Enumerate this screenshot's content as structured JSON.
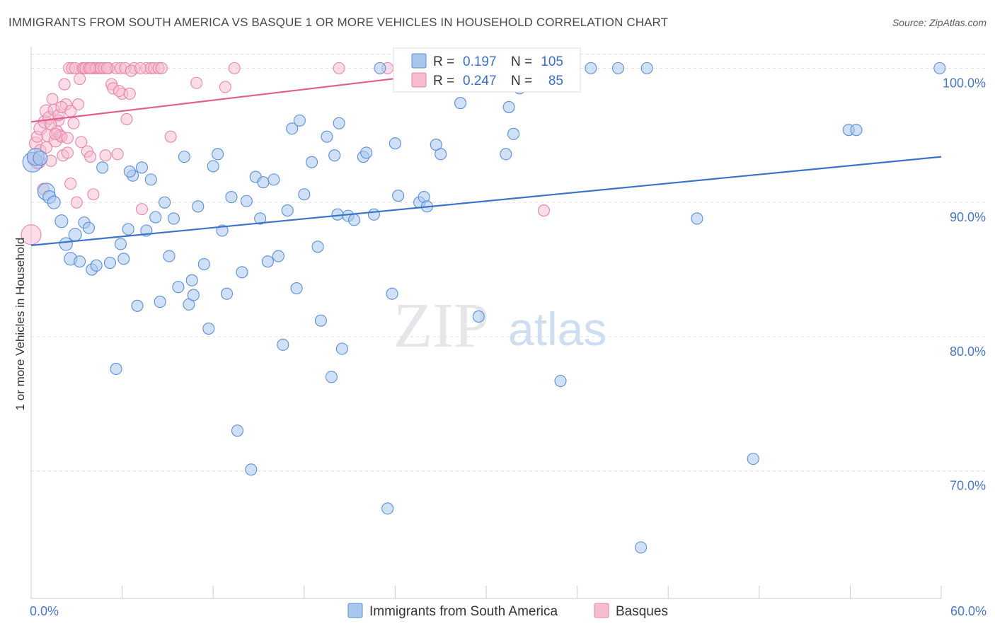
{
  "header": {
    "title": "IMMIGRANTS FROM SOUTH AMERICA VS BASQUE 1 OR MORE VEHICLES IN HOUSEHOLD CORRELATION CHART",
    "source": "Source: ZipAtlas.com"
  },
  "watermark": {
    "zip": "ZIP",
    "atlas": "atlas"
  },
  "colors": {
    "blue_fill": "#a9c6ee",
    "blue_stroke": "#5b8fd6",
    "blue_line": "#3a73c9",
    "pink_fill": "#f6bcd0",
    "pink_stroke": "#e886a7",
    "pink_line": "#e0608c",
    "grid": "#d9dde3",
    "tick_text": "#4a78c2"
  },
  "legend": {
    "rows": [
      {
        "r_label": "R =",
        "r_value": "0.197",
        "n_label": "N =",
        "n_value": "105"
      },
      {
        "r_label": "R =",
        "r_value": "0.247",
        "n_label": "N =",
        "n_value": "85"
      }
    ]
  },
  "chart_data": {
    "type": "scatter",
    "title": "IMMIGRANTS FROM SOUTH AMERICA VS BASQUE 1 OR MORE VEHICLES IN HOUSEHOLD CORRELATION CHART",
    "xlabel": "",
    "ylabel": "1 or more Vehicles in Household",
    "xlim": [
      0,
      60
    ],
    "ylim": [
      60.5,
      101.6
    ],
    "x_tick_labels": [
      "0.0%",
      "60.0%"
    ],
    "y_ticks": [
      70,
      80,
      90,
      100
    ],
    "y_tick_labels": [
      "70.0%",
      "80.0%",
      "90.0%",
      "100.0%"
    ],
    "grid": true,
    "legend_position": "bottom",
    "series": [
      {
        "name": "Immigrants from South America",
        "color": "blue",
        "trend": {
          "x": [
            0,
            60
          ],
          "y": [
            86.8,
            93.4
          ]
        },
        "points": [
          [
            0.1,
            93.0,
            14
          ],
          [
            0.3,
            93.4,
            12
          ],
          [
            0.6,
            93.3,
            10
          ],
          [
            1.0,
            90.8,
            12
          ],
          [
            1.2,
            90.4,
            9
          ],
          [
            1.5,
            90.0,
            9
          ],
          [
            2.0,
            88.6,
            9
          ],
          [
            2.3,
            86.9,
            9
          ],
          [
            2.6,
            85.8,
            9
          ],
          [
            2.9,
            87.6,
            9
          ],
          [
            3.2,
            85.6,
            8
          ],
          [
            3.5,
            88.5,
            8
          ],
          [
            3.8,
            88.1,
            8
          ],
          [
            4.0,
            85.0,
            8
          ],
          [
            4.3,
            85.3,
            8
          ],
          [
            4.7,
            92.6,
            8
          ],
          [
            5.2,
            85.5,
            8
          ],
          [
            5.6,
            77.6,
            8
          ],
          [
            5.9,
            86.9,
            8
          ],
          [
            6.1,
            85.8,
            8
          ],
          [
            6.4,
            88.0,
            8
          ],
          [
            6.7,
            92.0,
            8
          ],
          [
            7.0,
            82.3,
            8
          ],
          [
            7.3,
            92.6,
            8
          ],
          [
            7.6,
            87.9,
            8
          ],
          [
            7.9,
            91.7,
            8
          ],
          [
            8.2,
            88.9,
            8
          ],
          [
            8.5,
            82.6,
            8
          ],
          [
            8.8,
            90.0,
            8
          ],
          [
            9.1,
            86.0,
            8
          ],
          [
            9.4,
            88.8,
            8
          ],
          [
            9.7,
            83.7,
            8
          ],
          [
            10.1,
            93.4,
            8
          ],
          [
            10.4,
            82.4,
            8
          ],
          [
            10.7,
            83.1,
            8
          ],
          [
            11.0,
            89.7,
            8
          ],
          [
            11.4,
            85.4,
            8
          ],
          [
            11.7,
            80.6,
            8
          ],
          [
            12.0,
            92.7,
            8
          ],
          [
            12.3,
            93.6,
            8
          ],
          [
            12.6,
            87.9,
            8
          ],
          [
            12.9,
            83.2,
            8
          ],
          [
            13.2,
            90.4,
            8
          ],
          [
            13.6,
            73.0,
            8
          ],
          [
            13.9,
            84.8,
            8
          ],
          [
            14.2,
            90.1,
            8
          ],
          [
            14.5,
            70.1,
            8
          ],
          [
            14.8,
            91.9,
            8
          ],
          [
            15.1,
            88.8,
            8
          ],
          [
            15.3,
            91.5,
            8
          ],
          [
            15.6,
            85.6,
            8
          ],
          [
            16.0,
            91.7,
            8
          ],
          [
            16.3,
            86.0,
            8
          ],
          [
            16.6,
            79.4,
            8
          ],
          [
            16.9,
            89.4,
            8
          ],
          [
            17.2,
            95.5,
            8
          ],
          [
            17.5,
            83.6,
            8
          ],
          [
            17.7,
            96.1,
            8
          ],
          [
            18.0,
            90.6,
            8
          ],
          [
            18.5,
            93.0,
            8
          ],
          [
            18.9,
            86.7,
            8
          ],
          [
            19.1,
            81.2,
            8
          ],
          [
            19.5,
            94.9,
            8
          ],
          [
            19.8,
            77.0,
            8
          ],
          [
            20.0,
            93.5,
            8
          ],
          [
            20.2,
            89.1,
            8
          ],
          [
            20.5,
            79.1,
            8
          ],
          [
            20.9,
            89.0,
            8
          ],
          [
            21.3,
            88.7,
            8
          ],
          [
            21.9,
            93.4,
            8
          ],
          [
            22.1,
            93.7,
            8
          ],
          [
            22.6,
            89.1,
            8
          ],
          [
            23.0,
            100.0,
            8
          ],
          [
            23.5,
            67.2,
            8
          ],
          [
            23.8,
            83.2,
            8
          ],
          [
            24.0,
            94.4,
            8
          ],
          [
            24.2,
            90.5,
            8
          ],
          [
            24.5,
            100.0,
            8
          ],
          [
            25.6,
            90.0,
            8
          ],
          [
            25.9,
            90.4,
            8
          ],
          [
            26.1,
            89.7,
            8
          ],
          [
            26.7,
            94.3,
            8
          ],
          [
            27.0,
            93.6,
            8
          ],
          [
            28.3,
            97.4,
            8
          ],
          [
            29.5,
            81.5,
            8
          ],
          [
            29.7,
            100.0,
            8
          ],
          [
            31.3,
            93.6,
            8
          ],
          [
            31.5,
            97.1,
            8
          ],
          [
            31.8,
            95.1,
            8
          ],
          [
            32.2,
            98.5,
            8
          ],
          [
            32.9,
            100.0,
            8
          ],
          [
            34.5,
            100.0,
            8
          ],
          [
            34.9,
            76.7,
            8
          ],
          [
            36.9,
            100.0,
            8
          ],
          [
            38.7,
            100.0,
            8
          ],
          [
            40.2,
            64.3,
            8
          ],
          [
            40.6,
            100.0,
            8
          ],
          [
            43.9,
            88.8,
            8
          ],
          [
            47.6,
            70.9,
            8
          ],
          [
            53.9,
            95.4,
            8
          ],
          [
            54.4,
            95.4,
            8
          ],
          [
            59.9,
            100.0,
            8
          ],
          [
            6.5,
            92.3,
            8
          ],
          [
            10.6,
            84.2,
            8
          ],
          [
            20.3,
            95.9,
            8
          ]
        ]
      },
      {
        "name": "Basques",
        "color": "pink",
        "trend": {
          "x": [
            0,
            32
          ],
          "y": [
            96.0,
            100.3
          ]
        },
        "points": [
          [
            0.0,
            87.6,
            14
          ],
          [
            0.2,
            93.2,
            9
          ],
          [
            0.3,
            94.4,
            9
          ],
          [
            0.4,
            94.9,
            8
          ],
          [
            0.5,
            93.0,
            9
          ],
          [
            0.6,
            95.5,
            9
          ],
          [
            0.8,
            91.0,
            8
          ],
          [
            0.9,
            96.0,
            9
          ],
          [
            1.0,
            96.8,
            9
          ],
          [
            1.1,
            95.0,
            9
          ],
          [
            1.2,
            96.3,
            9
          ],
          [
            1.3,
            93.1,
            8
          ],
          [
            1.4,
            97.7,
            8
          ],
          [
            1.5,
            96.9,
            8
          ],
          [
            1.6,
            94.6,
            9
          ],
          [
            1.7,
            95.3,
            8
          ],
          [
            1.8,
            96.1,
            8
          ],
          [
            1.9,
            95.0,
            8
          ],
          [
            2.0,
            94.9,
            8
          ],
          [
            2.1,
            93.5,
            8
          ],
          [
            2.2,
            98.8,
            8
          ],
          [
            2.3,
            97.3,
            8
          ],
          [
            2.4,
            94.8,
            8
          ],
          [
            2.5,
            100.0,
            8
          ],
          [
            2.6,
            91.4,
            8
          ],
          [
            2.7,
            100.0,
            8
          ],
          [
            2.8,
            95.9,
            8
          ],
          [
            2.9,
            100.0,
            8
          ],
          [
            3.0,
            90.0,
            8
          ],
          [
            3.1,
            97.3,
            8
          ],
          [
            3.2,
            99.2,
            8
          ],
          [
            3.4,
            100.0,
            8
          ],
          [
            3.5,
            100.0,
            8
          ],
          [
            3.6,
            100.0,
            8
          ],
          [
            3.7,
            93.8,
            8
          ],
          [
            3.8,
            100.0,
            8
          ],
          [
            3.9,
            93.4,
            8
          ],
          [
            4.0,
            100.0,
            8
          ],
          [
            4.2,
            100.0,
            8
          ],
          [
            4.3,
            100.0,
            8
          ],
          [
            4.5,
            100.0,
            8
          ],
          [
            4.6,
            100.0,
            8
          ],
          [
            4.8,
            100.0,
            8
          ],
          [
            4.9,
            93.5,
            8
          ],
          [
            5.1,
            100.0,
            8
          ],
          [
            5.3,
            98.8,
            8
          ],
          [
            5.4,
            98.5,
            8
          ],
          [
            5.6,
            100.0,
            8
          ],
          [
            5.7,
            93.6,
            8
          ],
          [
            5.9,
            100.0,
            8
          ],
          [
            6.0,
            98.1,
            8
          ],
          [
            6.2,
            100.0,
            8
          ],
          [
            6.3,
            96.2,
            8
          ],
          [
            6.5,
            98.1,
            8
          ],
          [
            6.8,
            100.0,
            8
          ],
          [
            7.3,
            89.5,
            8
          ],
          [
            7.6,
            100.0,
            8
          ],
          [
            7.9,
            100.0,
            8
          ],
          [
            8.1,
            100.0,
            8
          ],
          [
            8.4,
            100.0,
            8
          ],
          [
            8.6,
            100.0,
            8
          ],
          [
            9.2,
            94.9,
            8
          ],
          [
            10.9,
            98.9,
            8
          ],
          [
            12.8,
            98.6,
            8
          ],
          [
            13.4,
            100.0,
            8
          ],
          [
            20.3,
            100.0,
            8
          ],
          [
            23.5,
            100.0,
            8
          ],
          [
            30.1,
            100.0,
            8
          ],
          [
            33.8,
            89.4,
            8
          ],
          [
            0.6,
            93.9,
            8
          ],
          [
            1.3,
            95.8,
            8
          ],
          [
            1.8,
            96.5,
            8
          ],
          [
            2.4,
            93.7,
            8
          ],
          [
            3.3,
            94.5,
            8
          ],
          [
            4.1,
            90.6,
            8
          ],
          [
            5.8,
            98.3,
            8
          ],
          [
            1.0,
            94.1,
            8
          ],
          [
            2.0,
            97.1,
            8
          ],
          [
            6.6,
            99.8,
            8
          ],
          [
            7.2,
            100.0,
            8
          ],
          [
            0.4,
            92.9,
            8
          ],
          [
            1.6,
            95.1,
            8
          ],
          [
            2.6,
            96.8,
            8
          ],
          [
            3.9,
            100.0,
            8
          ],
          [
            5.0,
            100.0,
            8
          ]
        ]
      }
    ]
  },
  "bottom_legend": {
    "items": [
      {
        "label": "Immigrants from South America"
      },
      {
        "label": "Basques"
      }
    ]
  }
}
